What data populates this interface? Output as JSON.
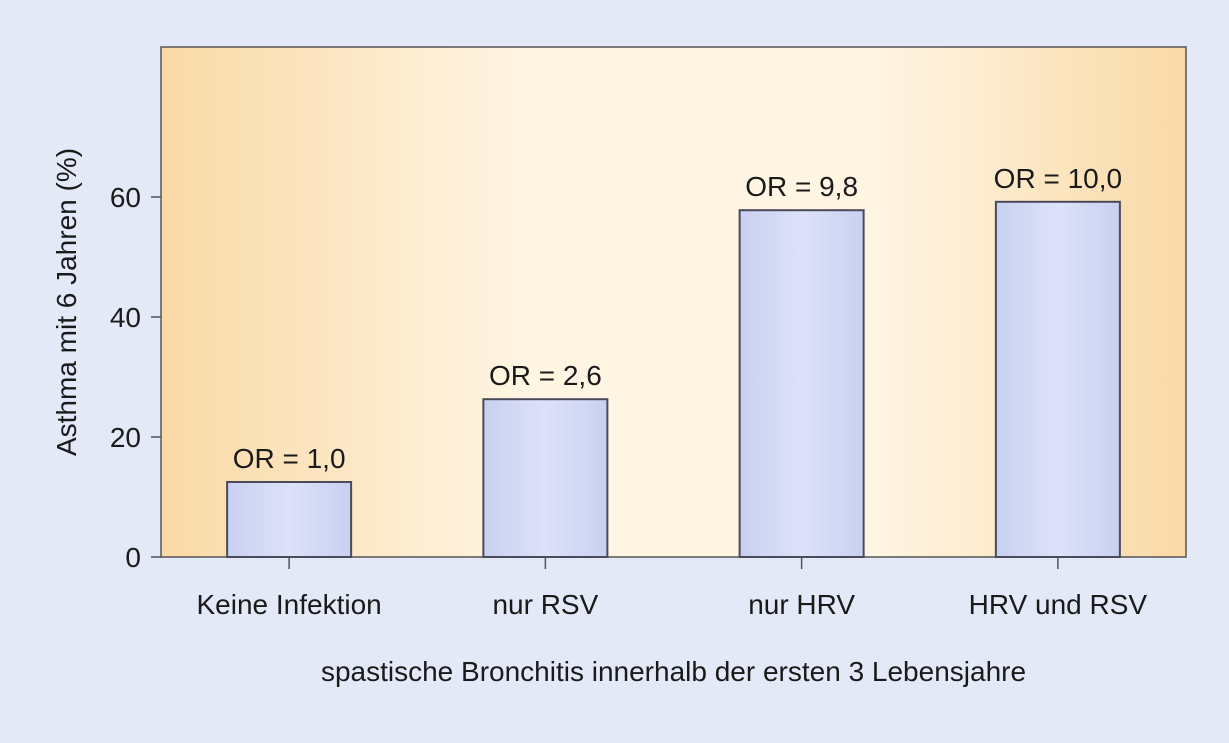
{
  "chart_data": {
    "type": "bar",
    "categories": [
      "Keine Infektion",
      "nur RSV",
      "nur HRV",
      "HRV und RSV"
    ],
    "values": [
      12.5,
      26.3,
      57.8,
      59.2
    ],
    "bar_labels": [
      "OR = 1,0",
      "OR = 2,6",
      "OR = 9,8",
      "OR = 10,0"
    ],
    "ylabel": "Asthma mit 6 Jahren (%)",
    "xlabel": "spastische Bronchitis innerhalb der ersten 3 Lebensjahre",
    "ylim": [
      0,
      85
    ],
    "yticks": [
      0,
      20,
      40,
      60
    ],
    "grid": false,
    "colors": {
      "page_background": "#e4e9f7",
      "plot_edge": "#f9d9a6",
      "plot_center": "#fff5e2",
      "bar_edge": "#c9d0f0",
      "bar_center": "#dde2fa",
      "bar_stroke": "#4a4a5a",
      "axis": "#555555"
    }
  }
}
